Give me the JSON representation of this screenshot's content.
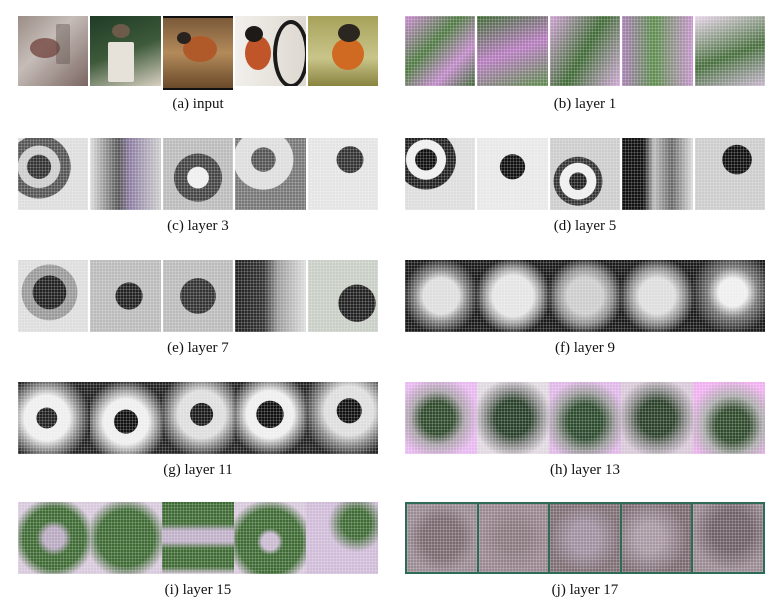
{
  "panels": [
    {
      "label": "(a) input"
    },
    {
      "label": "(b) layer 1"
    },
    {
      "label": "(c) layer 3"
    },
    {
      "label": "(d) layer 5"
    },
    {
      "label": "(e) layer 7"
    },
    {
      "label": "(f) layer 9"
    },
    {
      "label": "(g) layer 11"
    },
    {
      "label": "(h) layer 13"
    },
    {
      "label": "(i) layer 15"
    },
    {
      "label": "(j) layer 17"
    }
  ]
}
